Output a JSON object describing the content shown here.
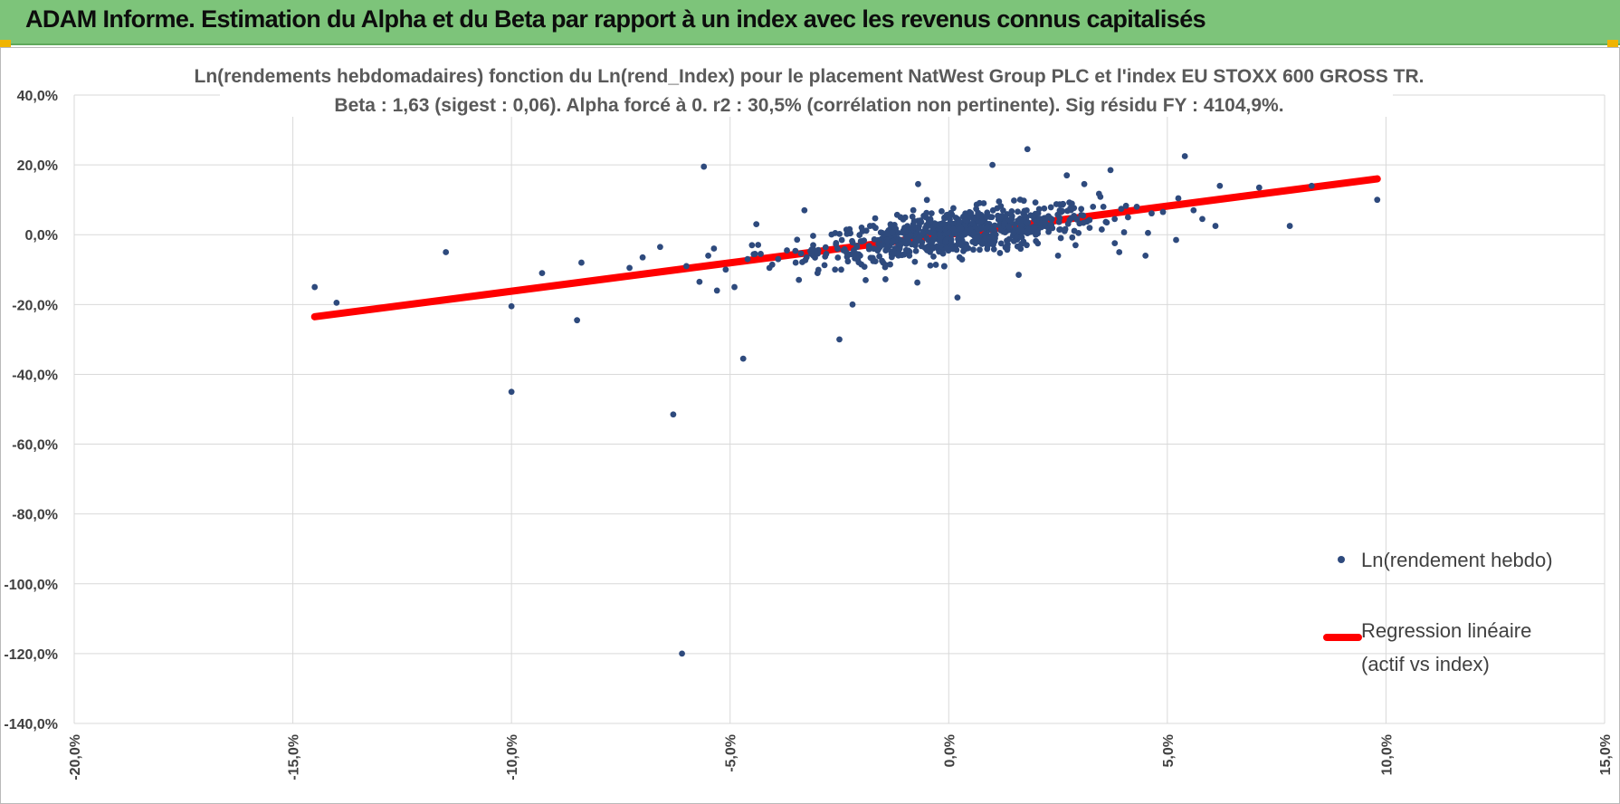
{
  "header": {
    "title": "ADAM Informe. Estimation du Alpha et du Beta par rapport à un index avec les revenus connus capitalisés",
    "background": "#7dc47a",
    "accent": "#f0b400"
  },
  "chart_data": {
    "type": "scatter",
    "title": [
      "Ln(rendements hebdomadaires) fonction du Ln(rend_Index) pour le placement NatWest Group PLC et l'index EU STOXX 600 GROSS TR.",
      "Beta : 1,63 (sigest : 0,06).  Alpha forcé à 0. r2 : 30,5% (corrélation non pertinente). Sig résidu FY : 4104,9%."
    ],
    "xlabel": "",
    "ylabel": "",
    "xlim": [
      -20,
      15
    ],
    "ylim": [
      -140,
      40
    ],
    "x_ticks": [
      "-20,0%",
      "-15,0%",
      "-10,0%",
      "-5,0%",
      "0,0%",
      "5,0%",
      "10,0%",
      "15,0%"
    ],
    "y_ticks": [
      "40,0%",
      "20,0%",
      "0,0%",
      "-20,0%",
      "-40,0%",
      "-60,0%",
      "-80,0%",
      "-100,0%",
      "-120,0%",
      "-140,0%"
    ],
    "grid": true,
    "legend_position": "right",
    "series": [
      {
        "name": "Ln(rendement hebdo)",
        "kind": "scatter",
        "color": "#2e4a7d",
        "x": [
          -14.5,
          -14.0,
          -11.5,
          -10.0,
          -10.0,
          -9.3,
          -8.5,
          -8.4,
          -7.3,
          -7.0,
          -6.6,
          -6.3,
          -6.1,
          -6.0,
          -5.7,
          -5.6,
          -5.5,
          -5.3,
          -5.1,
          -4.9,
          -4.7,
          -4.6,
          -4.5,
          -4.4,
          -4.3,
          -4.1,
          -3.9,
          -3.7,
          -3.5,
          -3.3,
          -3.1,
          -3.0,
          -2.8,
          -2.6,
          -2.5,
          -2.2,
          -2.1,
          -1.9,
          -1.8,
          -1.5,
          -1.6,
          -1.4,
          -1.1,
          -0.9,
          -0.7,
          -0.5,
          -0.3,
          -0.1,
          0.0,
          0.2,
          0.4,
          0.5,
          0.8,
          1.0,
          1.2,
          1.6,
          1.8,
          2.2,
          2.5,
          2.7,
          2.9,
          3.1,
          3.3,
          3.5,
          3.7,
          3.9,
          4.1,
          4.3,
          4.5,
          4.9,
          5.2,
          5.4,
          5.6,
          5.8,
          6.1,
          6.2,
          7.1,
          7.8,
          8.3,
          9.8
        ],
        "y": [
          -15.0,
          -19.5,
          -5.0,
          -20.5,
          -45.0,
          -11.0,
          -24.5,
          -8.0,
          -9.5,
          -6.5,
          -3.5,
          -51.5,
          -120.0,
          -9.0,
          -13.5,
          19.5,
          -6.0,
          -16.0,
          -10.0,
          -15.0,
          -35.5,
          -7.0,
          -3.0,
          3.0,
          -5.5,
          -9.5,
          -7.0,
          -4.5,
          -8.0,
          7.0,
          -3.0,
          -11.0,
          -5.5,
          -10.0,
          -30.0,
          -20.0,
          -3.5,
          -13.0,
          2.5,
          -8.0,
          -4.0,
          -2.0,
          5.0,
          -6.0,
          14.5,
          -1.0,
          3.0,
          -9.0,
          0.5,
          -18.0,
          -4.0,
          1.5,
          9.0,
          20.0,
          -2.5,
          -11.5,
          24.5,
          4.0,
          -6.0,
          17.0,
          -3.0,
          14.5,
          8.0,
          1.5,
          18.5,
          -5.0,
          5.0,
          8.0,
          -6.0,
          6.5,
          -1.5,
          22.5,
          7.0,
          4.5,
          2.5,
          14.0,
          13.5,
          2.5,
          14.0,
          10.0
        ],
        "cluster": {
          "count": 700,
          "x_center": 0.2,
          "y_center": 0.5,
          "x_spread": 1.6,
          "y_spread": 3.2
        }
      },
      {
        "name": "Regression linéaire\n(actif vs index)",
        "kind": "line",
        "color": "#ff0000",
        "x": [
          -14.5,
          9.8
        ],
        "y": [
          -23.5,
          16.0
        ]
      }
    ],
    "legend_labels": [
      "Ln(rendement hebdo)",
      "Regression linéaire",
      "(actif vs index)"
    ]
  }
}
